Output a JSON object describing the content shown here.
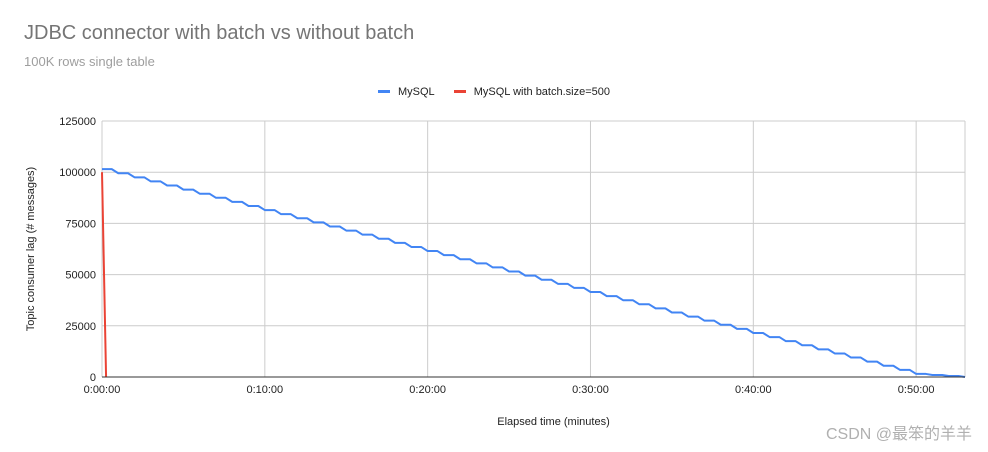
{
  "chart_data": {
    "type": "line",
    "title": "JDBC connector with batch vs without batch",
    "subtitle": "100K rows single table",
    "xlabel": "Elapsed time (minutes)",
    "ylabel": "Topic consumer lag (# messages)",
    "ylim": [
      0,
      125000
    ],
    "xlim": [
      0,
      53
    ],
    "x_unit": "minutes",
    "x_tick_labels": [
      "0:00:00",
      "0:10:00",
      "0:20:00",
      "0:30:00",
      "0:40:00",
      "0:50:00"
    ],
    "y_tick_labels": [
      "0",
      "25000",
      "50000",
      "75000",
      "100000",
      "125000"
    ],
    "grid": true,
    "legend_position": "top-center",
    "series": [
      {
        "name": "MySQL",
        "color": "#4285f4",
        "x": [
          0,
          1,
          2,
          3,
          4,
          5,
          6,
          7,
          8,
          9,
          10,
          11,
          12,
          13,
          14,
          15,
          16,
          17,
          18,
          19,
          20,
          21,
          22,
          23,
          24,
          25,
          26,
          27,
          28,
          29,
          30,
          31,
          32,
          33,
          34,
          35,
          36,
          37,
          38,
          39,
          40,
          41,
          42,
          43,
          44,
          45,
          46,
          47,
          48,
          49,
          50,
          51,
          52,
          53
        ],
        "values": [
          101500,
          99500,
          97500,
          95500,
          93500,
          91500,
          89500,
          87500,
          85500,
          83500,
          81500,
          79500,
          77500,
          75500,
          73500,
          71500,
          69500,
          67500,
          65500,
          63500,
          61500,
          59500,
          57500,
          55500,
          53500,
          51500,
          49500,
          47500,
          45500,
          43500,
          41500,
          39500,
          37500,
          35500,
          33500,
          31500,
          29500,
          27500,
          25500,
          23500,
          21500,
          19500,
          17500,
          15500,
          13500,
          11500,
          9500,
          7500,
          5500,
          3500,
          1500,
          1000,
          500,
          0
        ]
      },
      {
        "name": "MySQL with batch.size=500",
        "color": "#ea4335",
        "x": [
          0,
          0.25
        ],
        "values": [
          100000,
          0
        ]
      }
    ]
  },
  "watermark": "CSDN @最笨的羊羊"
}
